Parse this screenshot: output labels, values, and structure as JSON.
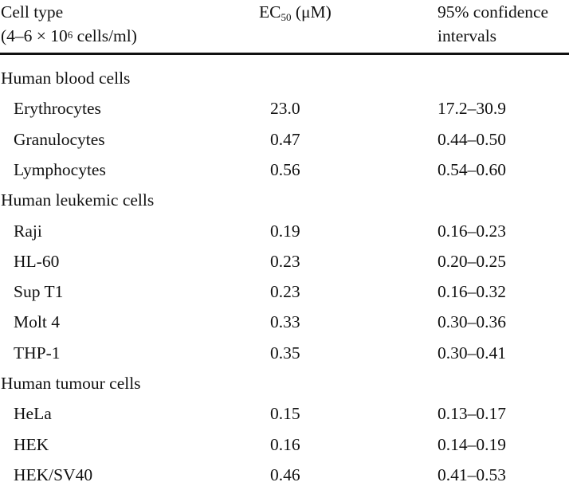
{
  "header": {
    "col1_line1": "Cell type",
    "col1_line2_prefix": "(4–6 × 10",
    "col1_line2_sup": "6",
    "col1_line2_suffix": " cells/ml)",
    "col2_prefix": "EC",
    "col2_sub": "50",
    "col2_suffix": " (μM)",
    "col3_line1": "95% confidence",
    "col3_line2": "intervals"
  },
  "groups": [
    {
      "label": "Human blood cells",
      "rows": [
        {
          "cell": "Erythrocytes",
          "ec50": "23.0",
          "ci": "17.2–30.9"
        },
        {
          "cell": "Granulocytes",
          "ec50": "0.47",
          "ci": "0.44–0.50"
        },
        {
          "cell": "Lymphocytes",
          "ec50": "0.56",
          "ci": "0.54–0.60"
        }
      ]
    },
    {
      "label": "Human leukemic cells",
      "rows": [
        {
          "cell": "Raji",
          "ec50": "0.19",
          "ci": "0.16–0.23"
        },
        {
          "cell": "HL-60",
          "ec50": "0.23",
          "ci": "0.20–0.25"
        },
        {
          "cell": "Sup T1",
          "ec50": "0.23",
          "ci": "0.16–0.32"
        },
        {
          "cell": "Molt 4",
          "ec50": "0.33",
          "ci": "0.30–0.36"
        },
        {
          "cell": "THP-1",
          "ec50": "0.35",
          "ci": "0.30–0.41"
        }
      ]
    },
    {
      "label": "Human tumour cells",
      "rows": [
        {
          "cell": "HeLa",
          "ec50": "0.15",
          "ci": "0.13–0.17"
        },
        {
          "cell": "HEK",
          "ec50": "0.16",
          "ci": "0.14–0.19"
        },
        {
          "cell": "HEK/SV40",
          "ec50": "0.46",
          "ci": "0.41–0.53"
        }
      ]
    }
  ]
}
